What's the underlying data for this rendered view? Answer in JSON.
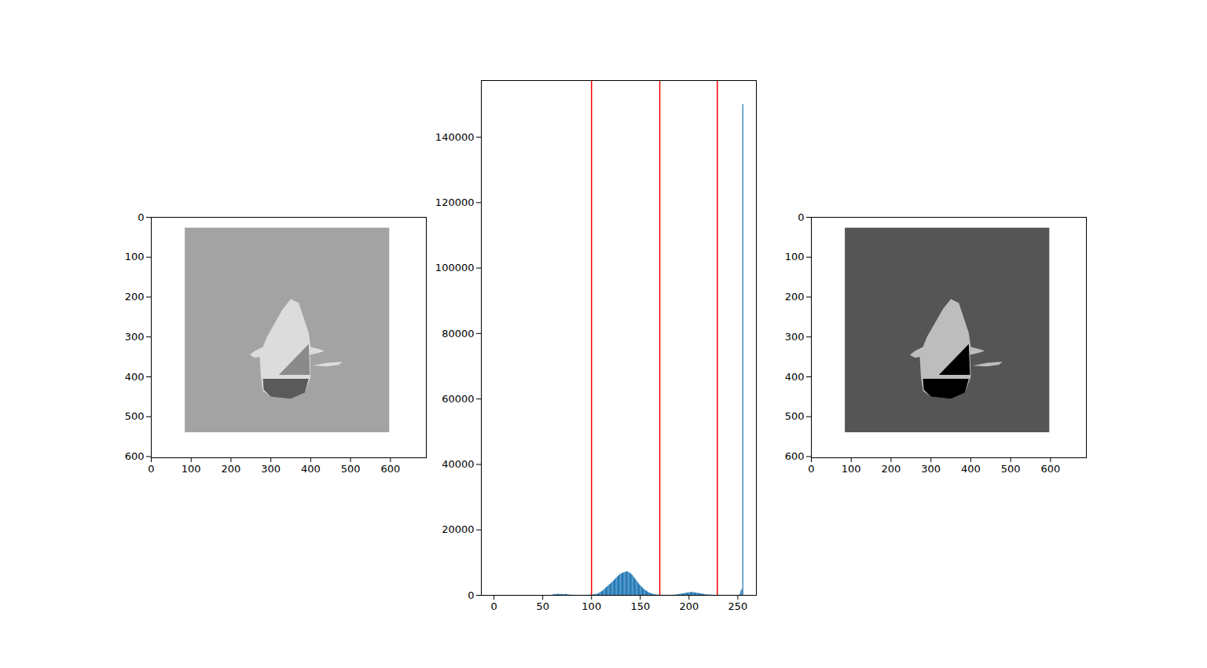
{
  "chart_data": [
    {
      "type": "image",
      "xlim": [
        0,
        690
      ],
      "ylim": [
        603,
        0
      ],
      "xticks": [
        0,
        100,
        200,
        300,
        400,
        500,
        600
      ],
      "yticks": [
        0,
        100,
        200,
        300,
        400,
        500,
        600
      ],
      "extent": [
        85,
        598,
        540,
        27
      ],
      "background": "#a3a3a3",
      "regions": [
        {
          "color": "#dcdcdc",
          "points": [
            [
              350,
              205
            ],
            [
              370,
              215
            ],
            [
              395,
              290
            ],
            [
              400,
              325
            ],
            [
              420,
              330
            ],
            [
              435,
              335
            ],
            [
              420,
              340
            ],
            [
              398,
              345
            ],
            [
              400,
              400
            ],
            [
              385,
              440
            ],
            [
              350,
              455
            ],
            [
              300,
              450
            ],
            [
              280,
              435
            ],
            [
              275,
              400
            ],
            [
              272,
              350
            ],
            [
              260,
              352
            ],
            [
              247,
              345
            ],
            [
              260,
              335
            ],
            [
              280,
              325
            ],
            [
              290,
              300
            ],
            [
              330,
              230
            ]
          ]
        },
        {
          "color": "#8a8a8a",
          "points": [
            [
              320,
              395
            ],
            [
              395,
              318
            ],
            [
              398,
              395
            ]
          ]
        },
        {
          "color": "#5a5a5a",
          "points": [
            [
              280,
              405
            ],
            [
              395,
              405
            ],
            [
              385,
              440
            ],
            [
              350,
              455
            ],
            [
              300,
              450
            ],
            [
              282,
              432
            ]
          ]
        },
        {
          "color": "#dddddd",
          "points": [
            [
              405,
              372
            ],
            [
              440,
              365
            ],
            [
              480,
              362
            ],
            [
              470,
              370
            ],
            [
              440,
              374
            ]
          ]
        }
      ]
    },
    {
      "type": "histogram",
      "bins": [
        0,
        1,
        2,
        3,
        4,
        5,
        6,
        7,
        8,
        9,
        10,
        11,
        12,
        13,
        14,
        15,
        16,
        17,
        18,
        19,
        20,
        21,
        22,
        23,
        24,
        25,
        26,
        27,
        28,
        29,
        30,
        31,
        32,
        33,
        34,
        35,
        36,
        37,
        38,
        39,
        40,
        41,
        42,
        43,
        44,
        45,
        46,
        47,
        48,
        49,
        50,
        51,
        52,
        53,
        54,
        55,
        56,
        57,
        58,
        59,
        60,
        61,
        62,
        63,
        64,
        65,
        66,
        67,
        68,
        69,
        70,
        71,
        72,
        73,
        74,
        75,
        76,
        77,
        78,
        79,
        80,
        81,
        82,
        83,
        84,
        85,
        86,
        87,
        88,
        89,
        90,
        91,
        92,
        93,
        94,
        95,
        96,
        97,
        98,
        99,
        100,
        101,
        102,
        103,
        104,
        105,
        106,
        107,
        108,
        109,
        110,
        111,
        112,
        113,
        114,
        115,
        116,
        117,
        118,
        119,
        120,
        121,
        122,
        123,
        124,
        125,
        126,
        127,
        128,
        129,
        130,
        131,
        132,
        133,
        134,
        135,
        136,
        137,
        138,
        139,
        140,
        141,
        142,
        143,
        144,
        145,
        146,
        147,
        148,
        149,
        150,
        151,
        152,
        153,
        154,
        155,
        156,
        157,
        158,
        159,
        160,
        161,
        162,
        163,
        164,
        165,
        166,
        167,
        168,
        169,
        170,
        171,
        172,
        173,
        174,
        175,
        176,
        177,
        178,
        179,
        180,
        181,
        182,
        183,
        184,
        185,
        186,
        187,
        188,
        189,
        190,
        191,
        192,
        193,
        194,
        195,
        196,
        197,
        198,
        199,
        200,
        201,
        202,
        203,
        204,
        205,
        206,
        207,
        208,
        209,
        210,
        211,
        212,
        213,
        214,
        215,
        216,
        217,
        218,
        219,
        220,
        221,
        222,
        223,
        224,
        225,
        226,
        227,
        228,
        229,
        230,
        231,
        232,
        233,
        234,
        235,
        236,
        237,
        238,
        239,
        240,
        241,
        242,
        243,
        244,
        245,
        246,
        247,
        248,
        249,
        250,
        251,
        252,
        253,
        254,
        255,
        256
      ],
      "counts": [
        0,
        0,
        0,
        0,
        0,
        0,
        0,
        0,
        0,
        0,
        0,
        0,
        0,
        0,
        0,
        0,
        0,
        0,
        0,
        0,
        0,
        0,
        0,
        0,
        0,
        0,
        0,
        0,
        0,
        0,
        0,
        0,
        0,
        0,
        0,
        0,
        0,
        0,
        0,
        0,
        0,
        0,
        0,
        0,
        0,
        0,
        0,
        0,
        0,
        0,
        0,
        0,
        0,
        0,
        0,
        0,
        0,
        0,
        0,
        0,
        100,
        200,
        250,
        300,
        250,
        300,
        350,
        300,
        250,
        300,
        250,
        200,
        250,
        300,
        250,
        200,
        150,
        100,
        80,
        60,
        40,
        30,
        30,
        20,
        20,
        20,
        20,
        20,
        20,
        20,
        20,
        30,
        30,
        30,
        40,
        40,
        50,
        60,
        80,
        100,
        120,
        150,
        180,
        220,
        260,
        300,
        400,
        500,
        700,
        900,
        1100,
        1300,
        1500,
        1800,
        2100,
        2400,
        2600,
        2900,
        3200,
        3400,
        3700,
        4000,
        4300,
        4600,
        4900,
        5200,
        5500,
        5800,
        6100,
        6300,
        6500,
        6700,
        6800,
        6900,
        7000,
        7100,
        7200,
        7100,
        7000,
        6800,
        6600,
        6300,
        6000,
        5600,
        5200,
        4800,
        4400,
        4000,
        3600,
        3200,
        2900,
        2600,
        2300,
        2000,
        1700,
        1500,
        1300,
        1100,
        900,
        750,
        600,
        500,
        400,
        300,
        250,
        200,
        150,
        120,
        100,
        80,
        60,
        50,
        40,
        40,
        30,
        30,
        30,
        30,
        30,
        30,
        30,
        40,
        40,
        50,
        60,
        80,
        100,
        150,
        200,
        250,
        300,
        350,
        400,
        450,
        500,
        550,
        600,
        650,
        700,
        750,
        800,
        850,
        900,
        900,
        850,
        800,
        750,
        700,
        650,
        600,
        550,
        500,
        450,
        400,
        350,
        300,
        250,
        200,
        150,
        120,
        100,
        90,
        80,
        70,
        60,
        50,
        40,
        30,
        30,
        30,
        30,
        20,
        20,
        20,
        20,
        20,
        20,
        20,
        20,
        20,
        20,
        20,
        20,
        20,
        20,
        20,
        20,
        20,
        20,
        20,
        20,
        20,
        300,
        1200,
        1800,
        150000
      ],
      "color": "#1f77b4",
      "xlim": [
        -13,
        269
      ],
      "ylim": [
        0,
        157300
      ],
      "xticks": [
        0,
        50,
        100,
        150,
        200,
        250
      ],
      "yticks": [
        0,
        20000,
        40000,
        60000,
        80000,
        100000,
        120000,
        140000
      ],
      "lines": {
        "values": [
          100,
          170,
          229
        ],
        "color": "#ff0000"
      }
    },
    {
      "type": "image",
      "xlim": [
        0,
        690
      ],
      "ylim": [
        603,
        0
      ],
      "xticks": [
        0,
        100,
        200,
        300,
        400,
        500,
        600
      ],
      "yticks": [
        0,
        100,
        200,
        300,
        400,
        500,
        600
      ],
      "extent": [
        85,
        598,
        540,
        27
      ],
      "background": "#555555",
      "regions": [
        {
          "color": "#bdbdbd",
          "points": [
            [
              350,
              205
            ],
            [
              370,
              215
            ],
            [
              395,
              290
            ],
            [
              400,
              325
            ],
            [
              420,
              330
            ],
            [
              435,
              335
            ],
            [
              420,
              340
            ],
            [
              398,
              345
            ],
            [
              400,
              400
            ],
            [
              385,
              440
            ],
            [
              350,
              455
            ],
            [
              300,
              450
            ],
            [
              280,
              435
            ],
            [
              275,
              400
            ],
            [
              272,
              350
            ],
            [
              260,
              352
            ],
            [
              247,
              345
            ],
            [
              260,
              335
            ],
            [
              280,
              325
            ],
            [
              290,
              300
            ],
            [
              330,
              230
            ]
          ]
        },
        {
          "color": "#000000",
          "points": [
            [
              320,
              395
            ],
            [
              395,
              318
            ],
            [
              398,
              395
            ]
          ]
        },
        {
          "color": "#000000",
          "points": [
            [
              280,
              405
            ],
            [
              395,
              405
            ],
            [
              385,
              440
            ],
            [
              350,
              455
            ],
            [
              300,
              450
            ],
            [
              282,
              432
            ]
          ]
        },
        {
          "color": "#bdbdbd",
          "points": [
            [
              405,
              372
            ],
            [
              440,
              365
            ],
            [
              480,
              362
            ],
            [
              470,
              370
            ],
            [
              440,
              374
            ]
          ]
        }
      ]
    }
  ]
}
